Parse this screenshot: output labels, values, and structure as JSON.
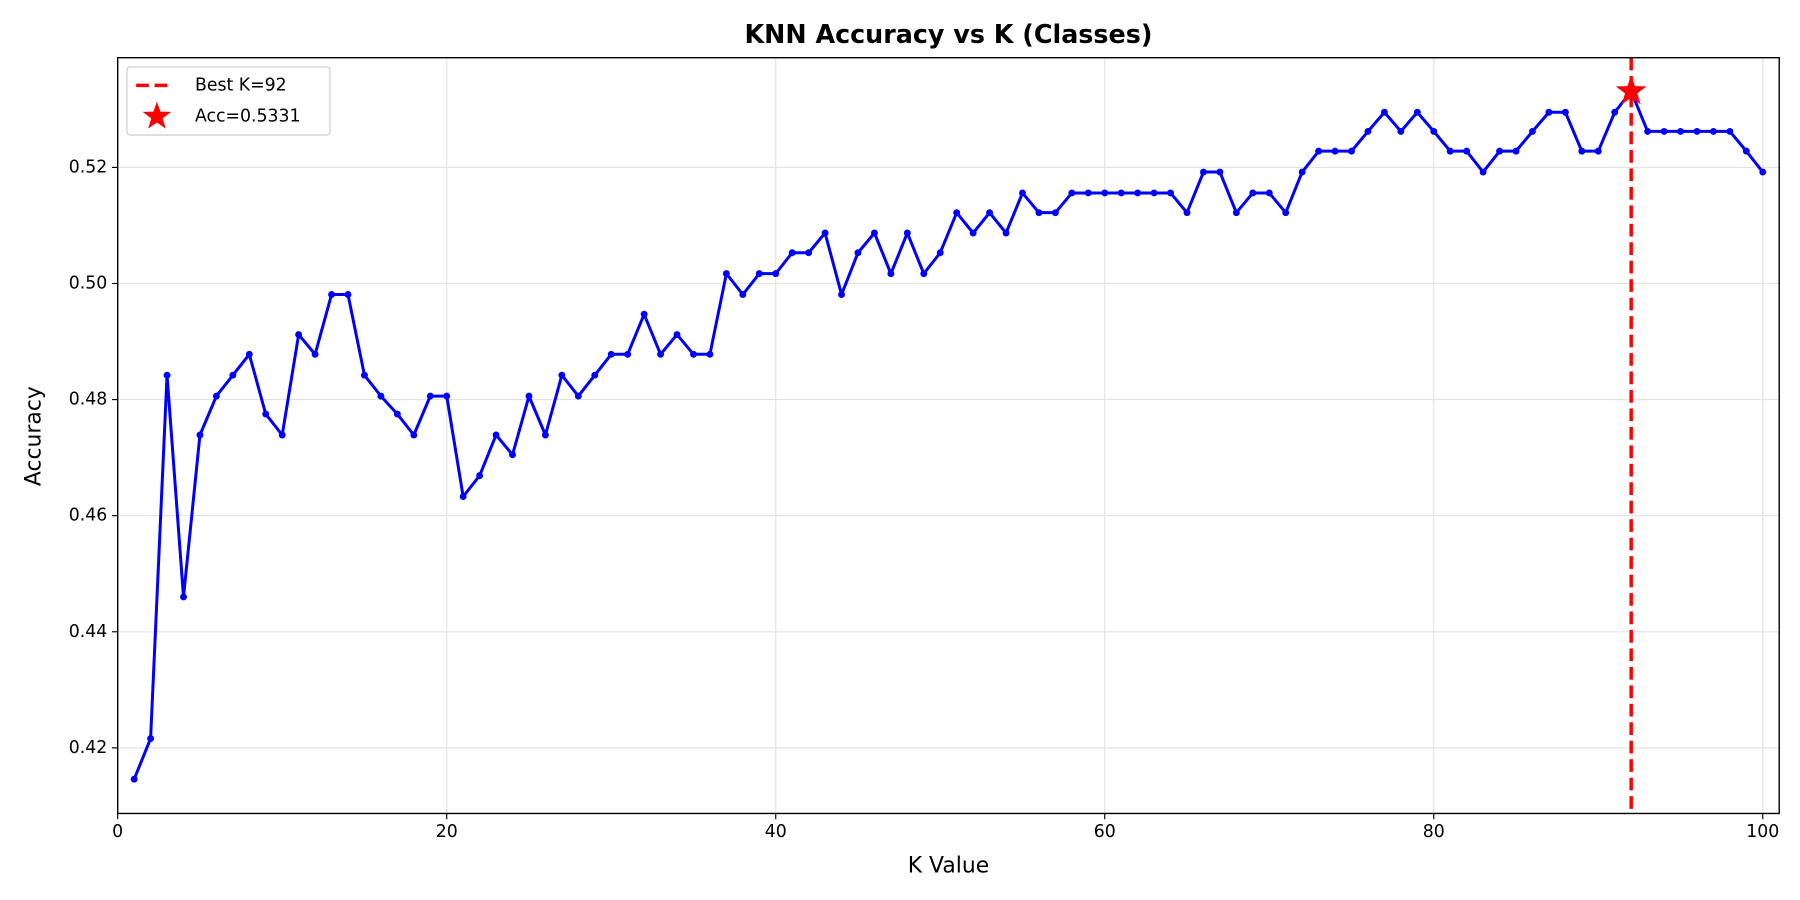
{
  "chart_data": {
    "type": "line",
    "title": "KNN Accuracy vs K (Classes)",
    "x_label": "K Value",
    "y_label": "Accuracy",
    "x": [
      1,
      2,
      3,
      4,
      5,
      6,
      7,
      8,
      9,
      10,
      11,
      12,
      13,
      14,
      15,
      16,
      17,
      18,
      19,
      20,
      21,
      22,
      23,
      24,
      25,
      26,
      27,
      28,
      29,
      30,
      31,
      32,
      33,
      34,
      35,
      36,
      37,
      38,
      39,
      40,
      41,
      42,
      43,
      44,
      45,
      46,
      47,
      48,
      49,
      50,
      51,
      52,
      53,
      54,
      55,
      56,
      57,
      58,
      59,
      60,
      61,
      62,
      63,
      64,
      65,
      66,
      67,
      68,
      69,
      70,
      71,
      72,
      73,
      74,
      75,
      76,
      77,
      78,
      79,
      80,
      81,
      82,
      83,
      84,
      85,
      86,
      87,
      88,
      89,
      90,
      91,
      92,
      93,
      94,
      95,
      96,
      97,
      98,
      99,
      100
    ],
    "series": [
      {
        "name": null,
        "color": "#0000ff",
        "values": [
          0.4146,
          0.4216,
          0.4842,
          0.446,
          0.4739,
          0.4806,
          0.4842,
          0.4878,
          0.4775,
          0.4739,
          0.4912,
          0.4878,
          0.4981,
          0.4981,
          0.4842,
          0.4806,
          0.4775,
          0.4739,
          0.4806,
          0.4806,
          0.4633,
          0.4669,
          0.4739,
          0.4705,
          0.4806,
          0.4739,
          0.4842,
          0.4806,
          0.4842,
          0.4878,
          0.4878,
          0.4947,
          0.4878,
          0.4912,
          0.4878,
          0.4878,
          0.5017,
          0.4981,
          0.5017,
          0.5017,
          0.5053,
          0.5053,
          0.5087,
          0.4981,
          0.5053,
          0.5087,
          0.5017,
          0.5087,
          0.5017,
          0.5053,
          0.5122,
          0.5087,
          0.5122,
          0.5087,
          0.5156,
          0.5122,
          0.5122,
          0.5156,
          0.5156,
          0.5156,
          0.5156,
          0.5156,
          0.5156,
          0.5156,
          0.5122,
          0.5192,
          0.5192,
          0.5122,
          0.5156,
          0.5156,
          0.5122,
          0.5192,
          0.5228,
          0.5228,
          0.5228,
          0.5262,
          0.5295,
          0.5262,
          0.5295,
          0.5262,
          0.5228,
          0.5228,
          0.5192,
          0.5228,
          0.5228,
          0.5262,
          0.5295,
          0.5295,
          0.5228,
          0.5228,
          0.5295,
          0.5331,
          0.5262,
          0.5262,
          0.5262,
          0.5262,
          0.5262,
          0.5262,
          0.5228,
          0.5192
        ]
      }
    ],
    "best_k": 92,
    "best_acc": 0.5331,
    "best_color": "#ff0000",
    "legend": [
      "Best K=92",
      "Acc=0.5331"
    ],
    "legend_position": "upper left",
    "xlim": [
      0,
      101
    ],
    "ylim": [
      0.4087,
      0.5389
    ],
    "xticks": [
      0,
      20,
      40,
      60,
      80,
      100
    ],
    "yticks": [
      0.42,
      0.44,
      0.46,
      0.48,
      {
        "value": 0.5,
        "label": "0.50"
      },
      0.52
    ],
    "grid": true
  }
}
